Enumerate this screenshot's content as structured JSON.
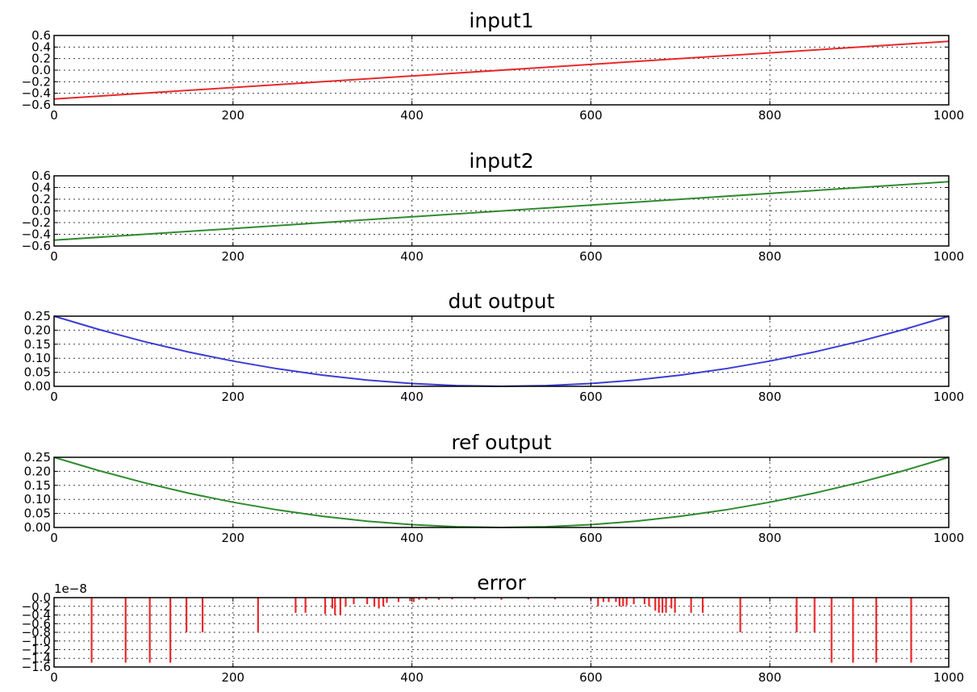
{
  "chart_data": [
    {
      "type": "line",
      "title": "input1",
      "xlabel": "",
      "ylabel": "",
      "xlim": [
        0,
        1000
      ],
      "ylim": [
        -0.6,
        0.6
      ],
      "x_ticks": [
        0,
        200,
        400,
        600,
        800,
        1000
      ],
      "y_ticks": [
        0.6,
        0.4,
        0.2,
        0.0,
        -0.2,
        -0.4,
        -0.6
      ],
      "y_tick_labels": [
        "0.6",
        "0.4",
        "0.2",
        "0.0",
        "−0.2",
        "−0.4",
        "−0.6"
      ],
      "x_tick_labels": [
        "0",
        "200",
        "400",
        "600",
        "800",
        "1000"
      ],
      "grid": true,
      "series": [
        {
          "color": "#e8292b",
          "x": [
            0,
            1000
          ],
          "y": [
            -0.5,
            0.5
          ]
        }
      ]
    },
    {
      "type": "line",
      "title": "input2",
      "xlabel": "",
      "ylabel": "",
      "xlim": [
        0,
        1000
      ],
      "ylim": [
        -0.6,
        0.6
      ],
      "x_ticks": [
        0,
        200,
        400,
        600,
        800,
        1000
      ],
      "y_ticks": [
        0.6,
        0.4,
        0.2,
        0.0,
        -0.2,
        -0.4,
        -0.6
      ],
      "y_tick_labels": [
        "0.6",
        "0.4",
        "0.2",
        "0.0",
        "−0.2",
        "−0.4",
        "−0.6"
      ],
      "x_tick_labels": [
        "0",
        "200",
        "400",
        "600",
        "800",
        "1000"
      ],
      "grid": true,
      "series": [
        {
          "color": "#2e8b2e",
          "x": [
            0,
            1000
          ],
          "y": [
            -0.5,
            0.5
          ]
        }
      ]
    },
    {
      "type": "line",
      "title": "dut output",
      "xlabel": "",
      "ylabel": "",
      "xlim": [
        0,
        1000
      ],
      "ylim": [
        0.0,
        0.25
      ],
      "x_ticks": [
        0,
        200,
        400,
        600,
        800,
        1000
      ],
      "y_ticks": [
        0.25,
        0.2,
        0.15,
        0.1,
        0.05,
        0.0
      ],
      "y_tick_labels": [
        "0.25",
        "0.20",
        "0.15",
        "0.10",
        "0.05",
        "0.00"
      ],
      "x_tick_labels": [
        "0",
        "200",
        "400",
        "600",
        "800",
        "1000"
      ],
      "grid": true,
      "series": [
        {
          "color": "#3c3cd6",
          "x": [
            0,
            50,
            100,
            150,
            200,
            250,
            300,
            350,
            400,
            450,
            500,
            550,
            600,
            650,
            700,
            750,
            800,
            850,
            900,
            950,
            1000
          ],
          "y": [
            0.25,
            0.2025,
            0.16,
            0.1225,
            0.09,
            0.0625,
            0.04,
            0.0225,
            0.01,
            0.0025,
            0.0,
            0.0025,
            0.01,
            0.0225,
            0.04,
            0.0625,
            0.09,
            0.1225,
            0.16,
            0.2025,
            0.25
          ]
        }
      ]
    },
    {
      "type": "line",
      "title": "ref output",
      "xlabel": "",
      "ylabel": "",
      "xlim": [
        0,
        1000
      ],
      "ylim": [
        0.0,
        0.25
      ],
      "x_ticks": [
        0,
        200,
        400,
        600,
        800,
        1000
      ],
      "y_ticks": [
        0.25,
        0.2,
        0.15,
        0.1,
        0.05,
        0.0
      ],
      "y_tick_labels": [
        "0.25",
        "0.20",
        "0.15",
        "0.10",
        "0.05",
        "0.00"
      ],
      "x_tick_labels": [
        "0",
        "200",
        "400",
        "600",
        "800",
        "1000"
      ],
      "grid": true,
      "series": [
        {
          "color": "#2e8b2e",
          "x": [
            0,
            50,
            100,
            150,
            200,
            250,
            300,
            350,
            400,
            450,
            500,
            550,
            600,
            650,
            700,
            750,
            800,
            850,
            900,
            950,
            1000
          ],
          "y": [
            0.25,
            0.2025,
            0.16,
            0.1225,
            0.09,
            0.0625,
            0.04,
            0.0225,
            0.01,
            0.0025,
            0.0,
            0.0025,
            0.01,
            0.0225,
            0.04,
            0.0625,
            0.09,
            0.1225,
            0.16,
            0.2025,
            0.25
          ]
        }
      ]
    },
    {
      "type": "line",
      "title": "error",
      "xlabel": "",
      "ylabel": "",
      "y_offset_label": "1e−8",
      "xlim": [
        0,
        1000
      ],
      "ylim": [
        -1.6,
        0.0
      ],
      "x_ticks": [
        0,
        200,
        400,
        600,
        800,
        1000
      ],
      "y_ticks": [
        0.0,
        -0.2,
        -0.4,
        -0.6,
        -0.8,
        -1.0,
        -1.2,
        -1.4,
        -1.6
      ],
      "y_tick_labels": [
        "0.0",
        "−0.2",
        "−0.4",
        "−0.6",
        "−0.8",
        "−1.0",
        "−1.2",
        "−1.4",
        "−1.6"
      ],
      "x_tick_labels": [
        "0",
        "200",
        "400",
        "600",
        "800",
        "1000"
      ],
      "grid": true,
      "spikes": {
        "color": "#e8292b",
        "x": [
          42,
          80,
          107,
          130,
          148,
          166,
          228,
          270,
          281,
          303,
          311,
          314,
          320,
          326,
          335,
          350,
          358,
          363,
          368,
          372,
          385,
          398,
          402,
          408,
          416,
          430,
          445,
          470,
          500,
          530,
          560,
          600,
          608,
          614,
          620,
          628,
          632,
          636,
          640,
          648,
          660,
          665,
          672,
          676,
          680,
          684,
          690,
          694,
          712,
          725,
          767,
          830,
          850,
          869,
          893,
          919,
          958
        ],
        "y": [
          -1.5,
          -1.5,
          -1.5,
          -1.5,
          -0.8,
          -0.8,
          -0.8,
          -0.35,
          -0.35,
          -0.38,
          -0.25,
          -0.4,
          -0.4,
          -0.2,
          -0.15,
          -0.15,
          -0.2,
          -0.25,
          -0.2,
          -0.12,
          -0.1,
          -0.08,
          -0.1,
          -0.05,
          -0.05,
          -0.05,
          -0.04,
          -0.04,
          -0.05,
          -0.04,
          -0.04,
          -0.05,
          -0.2,
          -0.1,
          -0.1,
          -0.1,
          -0.2,
          -0.2,
          -0.18,
          -0.15,
          -0.15,
          -0.2,
          -0.3,
          -0.35,
          -0.35,
          -0.35,
          -0.25,
          -0.35,
          -0.35,
          -0.35,
          -0.8,
          -0.8,
          -0.8,
          -1.5,
          -1.5,
          -1.5,
          -1.5
        ]
      }
    }
  ]
}
